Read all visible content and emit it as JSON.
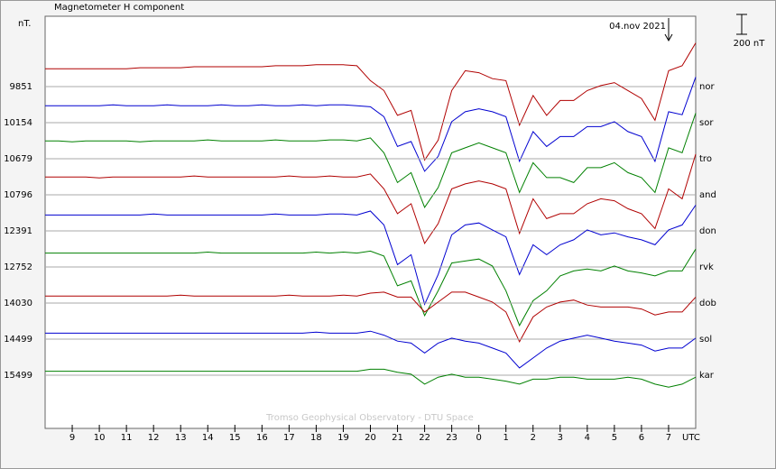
{
  "chart_data": {
    "type": "stackplot",
    "title": "Magnetometer H component",
    "y_unit": "nT.",
    "x_unit": "UTC",
    "annotation": "04.nov 2021",
    "credit": "Tromso Geophysical Observatory - DTU Space",
    "scale_bar": {
      "value": 200,
      "label": "200 nT"
    },
    "xlim": [
      8,
      32
    ],
    "xticks": [
      9,
      10,
      11,
      12,
      13,
      14,
      15,
      16,
      17,
      18,
      19,
      20,
      21,
      22,
      23,
      {
        "value": 24,
        "label": "0"
      },
      {
        "value": 25,
        "label": "1"
      },
      {
        "value": 26,
        "label": "2"
      },
      {
        "value": 27,
        "label": "3"
      },
      {
        "value": 28,
        "label": "4"
      },
      {
        "value": 29,
        "label": "5"
      },
      {
        "value": 30,
        "label": "6"
      },
      {
        "value": 31,
        "label": "7"
      }
    ],
    "x": [
      8,
      8.5,
      9,
      9.5,
      10,
      10.5,
      11,
      11.5,
      12,
      12.5,
      13,
      13.5,
      14,
      14.5,
      15,
      15.5,
      16,
      16.5,
      17,
      17.5,
      18,
      18.5,
      19,
      19.5,
      20,
      20.5,
      21,
      21.5,
      22,
      22.5,
      23,
      23.5,
      24,
      24.5,
      25,
      25.5,
      26,
      26.5,
      27,
      27.5,
      28,
      28.5,
      29,
      29.5,
      30,
      30.5,
      31,
      31.5,
      32
    ],
    "series": [
      {
        "name": "nor",
        "baseline": 9851,
        "color": "#b00000",
        "values": [
          180,
          180,
          180,
          180,
          180,
          180,
          180,
          190,
          190,
          190,
          190,
          200,
          200,
          200,
          200,
          200,
          200,
          210,
          210,
          210,
          220,
          220,
          220,
          210,
          60,
          -40,
          -290,
          -240,
          -740,
          -540,
          -40,
          160,
          140,
          80,
          60,
          -390,
          -90,
          -290,
          -140,
          -140,
          -40,
          10,
          40,
          -40,
          -120,
          -340,
          160,
          210,
          440
        ]
      },
      {
        "name": "sor",
        "baseline": 10154,
        "color": "#0000d0",
        "values": [
          170,
          170,
          170,
          170,
          170,
          180,
          170,
          170,
          170,
          180,
          170,
          170,
          170,
          180,
          170,
          170,
          180,
          170,
          170,
          180,
          170,
          180,
          180,
          170,
          160,
          60,
          -240,
          -190,
          -490,
          -340,
          10,
          110,
          140,
          110,
          60,
          -390,
          -90,
          -240,
          -140,
          -140,
          -40,
          -40,
          10,
          -90,
          -140,
          -390,
          110,
          80,
          460
        ]
      },
      {
        "name": "tro",
        "baseline": 10679,
        "color": "#008000",
        "values": [
          180,
          180,
          170,
          180,
          180,
          180,
          180,
          170,
          180,
          180,
          180,
          180,
          190,
          180,
          180,
          180,
          180,
          190,
          180,
          180,
          180,
          190,
          190,
          180,
          210,
          60,
          -240,
          -140,
          -490,
          -290,
          60,
          110,
          160,
          110,
          60,
          -340,
          -40,
          -190,
          -190,
          -240,
          -90,
          -90,
          -40,
          -140,
          -190,
          -340,
          110,
          60,
          460
        ]
      },
      {
        "name": "and",
        "baseline": 10796,
        "color": "#b00000",
        "values": [
          180,
          180,
          180,
          180,
          170,
          180,
          180,
          180,
          180,
          180,
          180,
          190,
          180,
          180,
          180,
          180,
          180,
          180,
          190,
          180,
          180,
          190,
          180,
          180,
          210,
          60,
          -190,
          -90,
          -490,
          -290,
          60,
          110,
          140,
          110,
          60,
          -390,
          -40,
          -240,
          -190,
          -190,
          -90,
          -40,
          -60,
          -140,
          -190,
          -340,
          60,
          -40,
          410
        ]
      },
      {
        "name": "don",
        "baseline": 12391,
        "color": "#0000d0",
        "values": [
          160,
          160,
          160,
          160,
          160,
          160,
          160,
          160,
          170,
          160,
          160,
          160,
          160,
          160,
          160,
          160,
          160,
          170,
          160,
          160,
          160,
          170,
          170,
          160,
          200,
          60,
          -340,
          -240,
          -740,
          -440,
          -40,
          60,
          80,
          10,
          -60,
          -440,
          -140,
          -240,
          -140,
          -90,
          10,
          -40,
          -20,
          -60,
          -90,
          -140,
          10,
          60,
          260
        ]
      },
      {
        "name": "rvk",
        "baseline": 12752,
        "color": "#008000",
        "values": [
          140,
          140,
          140,
          140,
          140,
          140,
          140,
          140,
          140,
          140,
          140,
          140,
          150,
          140,
          140,
          140,
          140,
          140,
          140,
          140,
          150,
          140,
          150,
          140,
          160,
          110,
          -190,
          -140,
          -490,
          -240,
          40,
          60,
          80,
          10,
          -240,
          -590,
          -340,
          -240,
          -90,
          -40,
          -20,
          -40,
          10,
          -40,
          -60,
          -90,
          -40,
          -40,
          180
        ]
      },
      {
        "name": "dob",
        "baseline": 14030,
        "color": "#b00000",
        "values": [
          70,
          70,
          70,
          70,
          70,
          70,
          70,
          70,
          70,
          70,
          80,
          70,
          70,
          70,
          70,
          70,
          70,
          70,
          80,
          70,
          70,
          70,
          80,
          70,
          100,
          110,
          60,
          60,
          -90,
          10,
          110,
          110,
          60,
          10,
          -90,
          -390,
          -140,
          -40,
          10,
          30,
          -20,
          -40,
          -40,
          -40,
          -60,
          -120,
          -90,
          -90,
          60
        ]
      },
      {
        "name": "sol",
        "baseline": 14499,
        "color": "#0000d0",
        "values": [
          60,
          60,
          60,
          60,
          60,
          60,
          60,
          60,
          60,
          60,
          60,
          60,
          60,
          60,
          60,
          60,
          60,
          60,
          60,
          60,
          70,
          60,
          60,
          60,
          80,
          40,
          -20,
          -40,
          -140,
          -40,
          10,
          -20,
          -40,
          -90,
          -140,
          -290,
          -190,
          -90,
          -20,
          10,
          40,
          10,
          -20,
          -40,
          -60,
          -120,
          -90,
          -90,
          10
        ]
      },
      {
        "name": "kar",
        "baseline": 15499,
        "color": "#008000",
        "values": [
          40,
          40,
          40,
          40,
          40,
          40,
          40,
          40,
          40,
          40,
          40,
          40,
          40,
          40,
          40,
          40,
          40,
          40,
          40,
          40,
          40,
          40,
          40,
          40,
          60,
          60,
          30,
          10,
          -90,
          -20,
          10,
          -20,
          -20,
          -40,
          -60,
          -90,
          -40,
          -40,
          -20,
          -20,
          -40,
          -40,
          -40,
          -20,
          -40,
          -90,
          -120,
          -90,
          -20
        ]
      }
    ]
  }
}
